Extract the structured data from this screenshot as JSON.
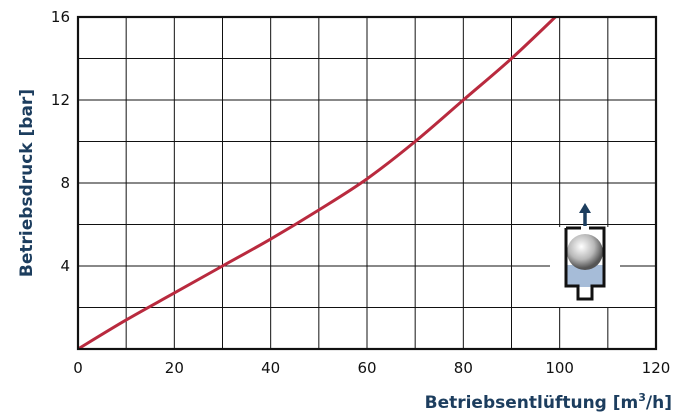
{
  "chart_data": {
    "type": "line",
    "xlabel": "Betriebsentlüftung [m",
    "xlabel_sup": "3",
    "xlabel_tail": "/h]",
    "ylabel": "Betriebsdruck [bar]",
    "xlim": [
      0,
      120
    ],
    "ylim": [
      0,
      16
    ],
    "x_ticks": [
      0,
      20,
      40,
      60,
      80,
      100,
      120
    ],
    "y_ticks": [
      4,
      8,
      12,
      16
    ],
    "x_grid": [
      0,
      10,
      20,
      30,
      40,
      50,
      60,
      70,
      80,
      90,
      100,
      110,
      120
    ],
    "y_grid": [
      0,
      2,
      4,
      6,
      8,
      10,
      12,
      14,
      16
    ],
    "grid": true,
    "series": [
      {
        "color": "#b92a3e",
        "x": [
          0,
          10,
          20,
          30,
          40,
          50,
          60,
          70,
          80,
          90,
          100
        ],
        "y": [
          0,
          1.4,
          2.7,
          4.0,
          5.3,
          6.7,
          8.2,
          10.0,
          12.0,
          14.0,
          16.2
        ]
      }
    ],
    "colors": {
      "curve": "#b92a3e",
      "axis_title": "#1c3d5e",
      "grid": "#111111",
      "icon_liquid": "#a6bcd8",
      "icon_arrow": "#1c3d5e"
    },
    "inset_icon": "valve-float-icon"
  }
}
